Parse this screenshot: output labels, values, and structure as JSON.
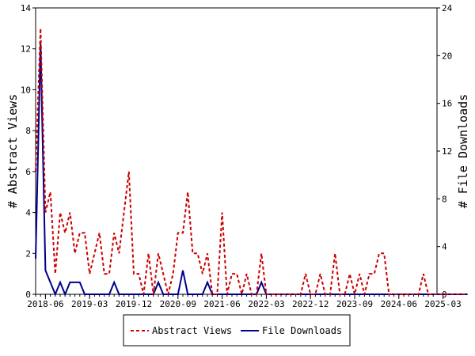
{
  "chart_data": {
    "type": "line",
    "x_tick_labels": [
      "2018-06",
      "2019-03",
      "2019-12",
      "2020-09",
      "2021-06",
      "2022-03",
      "2022-12",
      "2023-09",
      "2024-06",
      "2025-03"
    ],
    "y_left": {
      "label": "# Abstract Views",
      "ylim": [
        0,
        14
      ],
      "ticks": [
        0,
        2,
        4,
        6,
        8,
        10,
        12,
        14
      ]
    },
    "y_right": {
      "label": "# File Downloads",
      "ylim": [
        0,
        24
      ],
      "ticks": [
        0,
        4,
        8,
        12,
        16,
        20,
        24
      ]
    },
    "x_start": "2018-04",
    "legend_position": "bottom-center",
    "series": [
      {
        "name": "Abstract Views",
        "axis": "left",
        "color": "#cc0000",
        "style": "dashed",
        "points": [
          [
            "2018-04",
            6
          ],
          [
            "2018-05",
            13
          ],
          [
            "2018-06",
            4
          ],
          [
            "2018-07",
            5
          ],
          [
            "2018-08",
            1
          ],
          [
            "2018-09",
            4
          ],
          [
            "2018-10",
            3
          ],
          [
            "2018-11",
            4
          ],
          [
            "2018-12",
            2
          ],
          [
            "2019-01",
            3
          ],
          [
            "2019-02",
            3
          ],
          [
            "2019-03",
            1
          ],
          [
            "2019-04",
            2
          ],
          [
            "2019-05",
            3
          ],
          [
            "2019-06",
            1
          ],
          [
            "2019-07",
            1
          ],
          [
            "2019-08",
            3
          ],
          [
            "2019-09",
            2
          ],
          [
            "2019-10",
            4
          ],
          [
            "2019-11",
            6
          ],
          [
            "2019-12",
            1
          ],
          [
            "2020-01",
            1
          ],
          [
            "2020-02",
            0
          ],
          [
            "2020-03",
            2
          ],
          [
            "2020-04",
            0
          ],
          [
            "2020-05",
            2
          ],
          [
            "2020-06",
            1
          ],
          [
            "2020-07",
            0
          ],
          [
            "2020-08",
            1
          ],
          [
            "2020-09",
            3
          ],
          [
            "2020-10",
            3
          ],
          [
            "2020-11",
            5
          ],
          [
            "2020-12",
            2
          ],
          [
            "2021-01",
            2
          ],
          [
            "2021-02",
            1
          ],
          [
            "2021-03",
            2
          ],
          [
            "2021-04",
            0
          ],
          [
            "2021-05",
            0
          ],
          [
            "2021-06",
            4
          ],
          [
            "2021-07",
            0
          ],
          [
            "2021-08",
            1
          ],
          [
            "2021-09",
            1
          ],
          [
            "2021-10",
            0
          ],
          [
            "2021-11",
            1
          ],
          [
            "2021-12",
            0
          ],
          [
            "2022-01",
            0
          ],
          [
            "2022-02",
            2
          ],
          [
            "2022-03",
            0
          ],
          [
            "2022-04",
            0
          ],
          [
            "2022-05",
            0
          ],
          [
            "2022-06",
            0
          ],
          [
            "2022-07",
            0
          ],
          [
            "2022-08",
            0
          ],
          [
            "2022-09",
            0
          ],
          [
            "2022-10",
            0
          ],
          [
            "2022-11",
            1
          ],
          [
            "2022-12",
            0
          ],
          [
            "2023-01",
            0
          ],
          [
            "2023-02",
            1
          ],
          [
            "2023-03",
            0
          ],
          [
            "2023-04",
            0
          ],
          [
            "2023-05",
            2
          ],
          [
            "2023-06",
            0
          ],
          [
            "2023-07",
            0
          ],
          [
            "2023-08",
            1
          ],
          [
            "2023-09",
            0
          ],
          [
            "2023-10",
            1
          ],
          [
            "2023-11",
            0
          ],
          [
            "2023-12",
            1
          ],
          [
            "2024-01",
            1
          ],
          [
            "2024-02",
            2
          ],
          [
            "2024-03",
            2
          ],
          [
            "2024-04",
            0
          ],
          [
            "2024-05",
            0
          ],
          [
            "2024-06",
            0
          ],
          [
            "2024-07",
            0
          ],
          [
            "2024-08",
            0
          ],
          [
            "2024-09",
            0
          ],
          [
            "2024-10",
            0
          ],
          [
            "2024-11",
            1
          ],
          [
            "2024-12",
            0
          ],
          [
            "2025-01",
            0
          ],
          [
            "2025-02",
            0
          ],
          [
            "2025-03",
            0
          ],
          [
            "2025-04",
            0
          ],
          [
            "2025-05",
            0
          ],
          [
            "2025-06",
            0
          ],
          [
            "2025-07",
            0
          ],
          [
            "2025-08",
            0
          ]
        ]
      },
      {
        "name": "File Downloads",
        "axis": "right",
        "color": "#00008b",
        "style": "solid",
        "points": [
          [
            "2018-04",
            3
          ],
          [
            "2018-05",
            21
          ],
          [
            "2018-06",
            2
          ],
          [
            "2018-07",
            1
          ],
          [
            "2018-08",
            0
          ],
          [
            "2018-09",
            1
          ],
          [
            "2018-10",
            0
          ],
          [
            "2018-11",
            1
          ],
          [
            "2018-12",
            1
          ],
          [
            "2019-01",
            1
          ],
          [
            "2019-02",
            0
          ],
          [
            "2019-03",
            0
          ],
          [
            "2019-04",
            0
          ],
          [
            "2019-05",
            0
          ],
          [
            "2019-06",
            0
          ],
          [
            "2019-07",
            0
          ],
          [
            "2019-08",
            1
          ],
          [
            "2019-09",
            0
          ],
          [
            "2019-10",
            0
          ],
          [
            "2019-11",
            0
          ],
          [
            "2019-12",
            0
          ],
          [
            "2020-01",
            0
          ],
          [
            "2020-02",
            0
          ],
          [
            "2020-03",
            0
          ],
          [
            "2020-04",
            0
          ],
          [
            "2020-05",
            1
          ],
          [
            "2020-06",
            0
          ],
          [
            "2020-07",
            0
          ],
          [
            "2020-08",
            0
          ],
          [
            "2020-09",
            0
          ],
          [
            "2020-10",
            2
          ],
          [
            "2020-11",
            0
          ],
          [
            "2020-12",
            0
          ],
          [
            "2021-01",
            0
          ],
          [
            "2021-02",
            0
          ],
          [
            "2021-03",
            1
          ],
          [
            "2021-04",
            0
          ],
          [
            "2021-05",
            0
          ],
          [
            "2021-06",
            0
          ],
          [
            "2021-07",
            0
          ],
          [
            "2021-08",
            0
          ],
          [
            "2021-09",
            0
          ],
          [
            "2021-10",
            0
          ],
          [
            "2021-11",
            0
          ],
          [
            "2021-12",
            0
          ],
          [
            "2022-01",
            0
          ],
          [
            "2022-02",
            1
          ],
          [
            "2022-03",
            0
          ],
          [
            "2022-04",
            0
          ],
          [
            "2022-05",
            0
          ],
          [
            "2022-06",
            0
          ],
          [
            "2022-07",
            0
          ],
          [
            "2022-08",
            0
          ],
          [
            "2022-09",
            0
          ],
          [
            "2022-10",
            0
          ],
          [
            "2022-11",
            0
          ],
          [
            "2022-12",
            0
          ],
          [
            "2023-01",
            0
          ],
          [
            "2023-02",
            0
          ],
          [
            "2023-03",
            0
          ],
          [
            "2023-04",
            0
          ],
          [
            "2023-05",
            0
          ],
          [
            "2023-06",
            0
          ],
          [
            "2023-07",
            0
          ],
          [
            "2023-08",
            0
          ],
          [
            "2023-09",
            0
          ],
          [
            "2023-10",
            0
          ],
          [
            "2023-11",
            0
          ],
          [
            "2023-12",
            0
          ],
          [
            "2024-01",
            0
          ],
          [
            "2024-02",
            0
          ],
          [
            "2024-03",
            0
          ],
          [
            "2024-04",
            0
          ],
          [
            "2024-05",
            0
          ],
          [
            "2024-06",
            0
          ],
          [
            "2024-07",
            0
          ],
          [
            "2024-08",
            0
          ],
          [
            "2024-09",
            0
          ],
          [
            "2024-10",
            0
          ],
          [
            "2024-11",
            0
          ],
          [
            "2024-12",
            0
          ],
          [
            "2025-01",
            0
          ],
          [
            "2025-02",
            0
          ],
          [
            "2025-03",
            0
          ],
          [
            "2025-04",
            0
          ],
          [
            "2025-05",
            0
          ],
          [
            "2025-06",
            0
          ],
          [
            "2025-07",
            0
          ],
          [
            "2025-08",
            0
          ]
        ]
      }
    ]
  },
  "legend": {
    "items": [
      {
        "label": "Abstract Views",
        "color": "#cc0000",
        "style": "dashed"
      },
      {
        "label": "File Downloads",
        "color": "#00008b",
        "style": "solid"
      }
    ]
  }
}
